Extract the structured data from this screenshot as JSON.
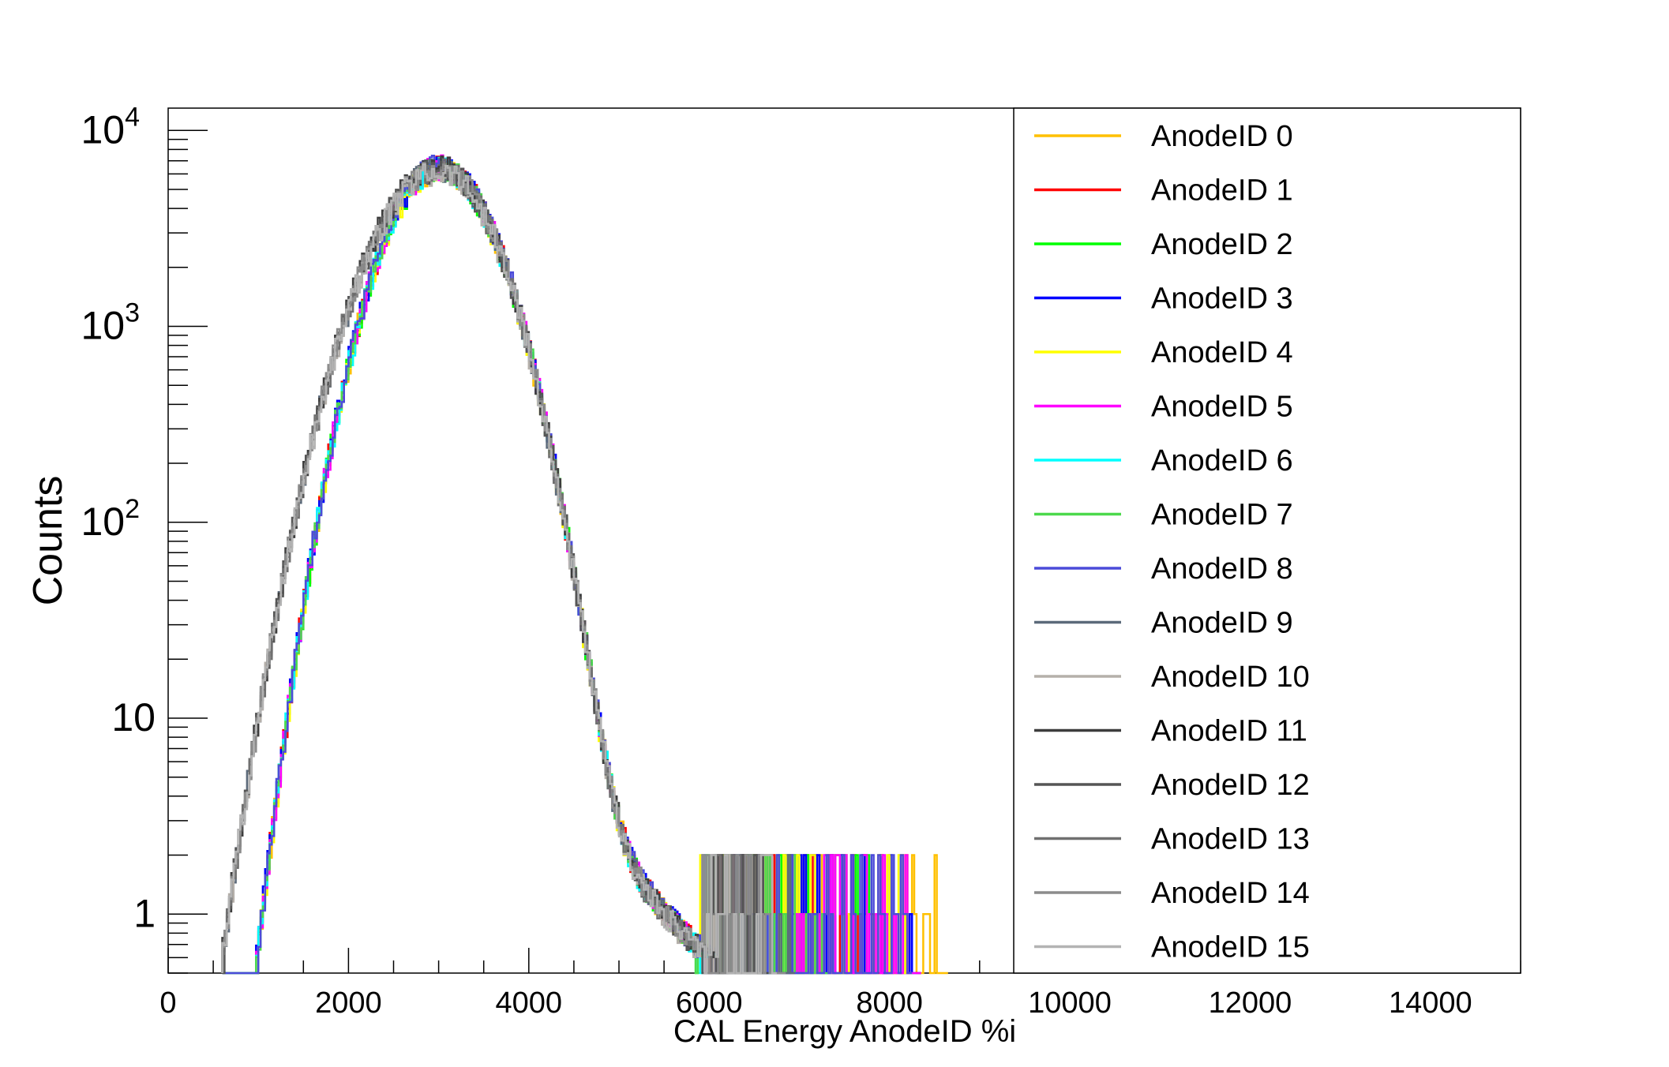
{
  "chart_data": {
    "type": "line",
    "title": "",
    "xlabel": "CAL Energy AnodeID %i",
    "ylabel": "Counts",
    "xlim": [
      0,
      15000
    ],
    "ylim": [
      0.5,
      13000
    ],
    "yscale": "log",
    "grid": false,
    "legend_position": "right",
    "x_ticks": [
      {
        "value": 0,
        "label": "0"
      },
      {
        "value": 2000,
        "label": "2000"
      },
      {
        "value": 4000,
        "label": "4000"
      },
      {
        "value": 6000,
        "label": "6000"
      },
      {
        "value": 8000,
        "label": "8000"
      },
      {
        "value": 10000,
        "label": "10000"
      },
      {
        "value": 12000,
        "label": "12000"
      },
      {
        "value": 14000,
        "label": "14000"
      }
    ],
    "y_ticks": [
      {
        "value": 1,
        "label": "1"
      },
      {
        "value": 10,
        "label": "10"
      },
      {
        "value": 100,
        "label": "10",
        "exp": "2"
      },
      {
        "value": 1000,
        "label": "10",
        "exp": "3"
      },
      {
        "value": 10000,
        "label": "10",
        "exp": "4"
      }
    ],
    "series": [
      {
        "name": "AnodeID 0",
        "color": "#ffc000",
        "peak": 6400,
        "tail_end": 8600
      },
      {
        "name": "AnodeID 1",
        "color": "#ff0000",
        "peak": 6500,
        "tail_end": 8100
      },
      {
        "name": "AnodeID 2",
        "color": "#00ff00",
        "peak": 6400,
        "tail_end": 7800
      },
      {
        "name": "AnodeID 3",
        "color": "#0000ff",
        "peak": 6600,
        "tail_end": 8300
      },
      {
        "name": "AnodeID 4",
        "color": "#ffff00",
        "peak": 6300,
        "tail_end": 8200
      },
      {
        "name": "AnodeID 5",
        "color": "#ff00ff",
        "peak": 6500,
        "tail_end": 8300
      },
      {
        "name": "AnodeID 6",
        "color": "#00ffff",
        "peak": 6400,
        "tail_end": 6800
      },
      {
        "name": "AnodeID 7",
        "color": "#4cd94c",
        "peak": 6500,
        "tail_end": 7300
      },
      {
        "name": "AnodeID 8",
        "color": "#4b4bd9",
        "peak": 6600,
        "tail_end": 8200
      },
      {
        "name": "AnodeID 9",
        "color": "#5c6a7a",
        "peak": 6300,
        "tail_end": 6900
      },
      {
        "name": "AnodeID 10",
        "color": "#b5b0aa",
        "peak": 6200,
        "tail_end": 6400
      },
      {
        "name": "AnodeID 11",
        "color": "#3d3d3d",
        "peak": 6500,
        "tail_end": 6600
      },
      {
        "name": "AnodeID 12",
        "color": "#555555",
        "peak": 6400,
        "tail_end": 6700
      },
      {
        "name": "AnodeID 13",
        "color": "#707070",
        "peak": 6300,
        "tail_end": 6500
      },
      {
        "name": "AnodeID 14",
        "color": "#8c8c8c",
        "peak": 6400,
        "tail_end": 6800
      },
      {
        "name": "AnodeID 15",
        "color": "#b3b3b3",
        "peak": 6300,
        "tail_end": 6700
      }
    ],
    "peak_x": 3000
  }
}
